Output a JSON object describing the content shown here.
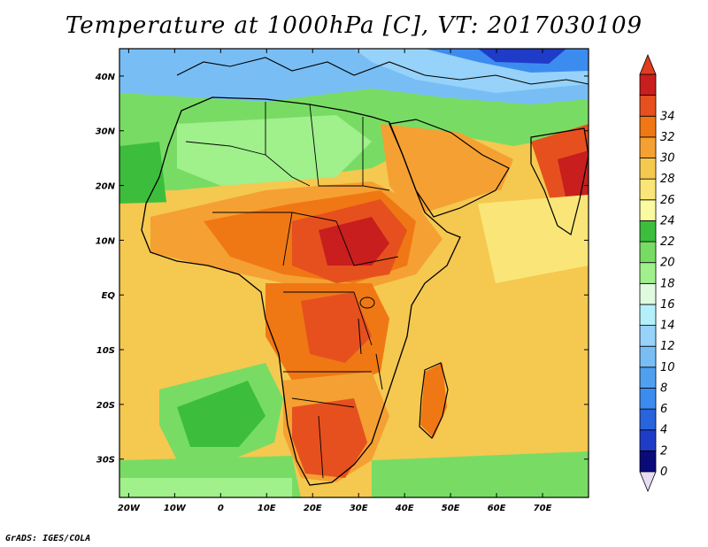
{
  "title": "Temperature at 1000hPa [C], VT: 2017030109",
  "footer": "GrADS: IGES/COLA",
  "map": {
    "lon_labels": [
      "20W",
      "10W",
      "0",
      "10E",
      "20E",
      "30E",
      "40E",
      "50E",
      "60E",
      "70E"
    ],
    "lat_labels": [
      "40N",
      "30N",
      "20N",
      "10N",
      "EQ",
      "10S",
      "20S",
      "30S"
    ],
    "lon_range": [
      -22,
      80
    ],
    "lat_range": [
      -37,
      45
    ]
  },
  "colorbar": {
    "labels": [
      "0",
      "2",
      "4",
      "6",
      "8",
      "10",
      "12",
      "14",
      "16",
      "18",
      "20",
      "22",
      "24",
      "26",
      "28",
      "30",
      "32",
      "34"
    ],
    "colors": [
      "#0a0a78",
      "#1e3cc8",
      "#2864dc",
      "#3c8cf0",
      "#50a0f0",
      "#78bef5",
      "#96d2fa",
      "#b4f0fa",
      "#e0fae0",
      "#a0f08c",
      "#78dc64",
      "#3cbe3c",
      "#fafaa0",
      "#fae678",
      "#f5c850",
      "#f5a032",
      "#f07814",
      "#e6501e",
      "#c81e1e"
    ]
  }
}
